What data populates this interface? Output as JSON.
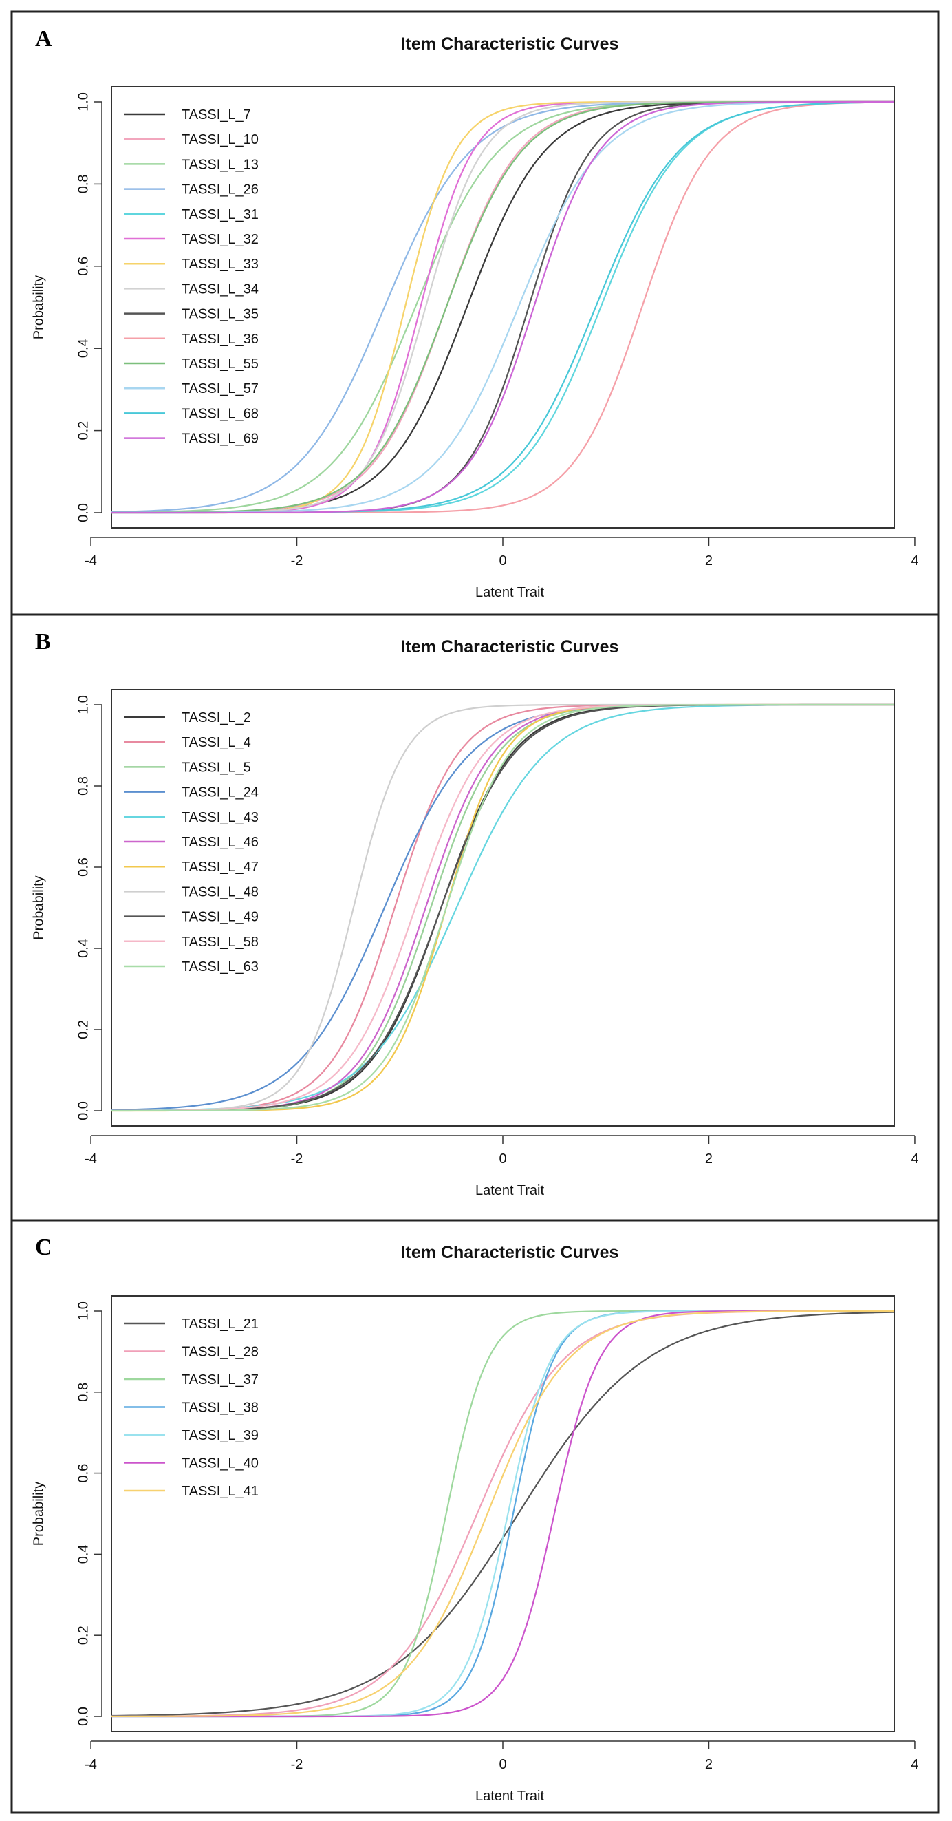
{
  "chart_data": [
    {
      "panel": "A",
      "type": "line",
      "title": "Item Characteristic Curves",
      "xlabel": "Latent Trait",
      "ylabel": "Probability",
      "xlim": [
        -3.8,
        3.8
      ],
      "ylim": [
        0,
        1
      ],
      "xticks": [
        "-4",
        "-2",
        "0",
        "2",
        "4"
      ],
      "yticks": [
        "0.0",
        "0.2",
        "0.4",
        "0.6",
        "0.8",
        "1.0"
      ],
      "legend": "top-left",
      "series": [
        {
          "name": "TASSI_L_7",
          "color": "#3a3a3a",
          "a": 1.55,
          "b": -0.35
        },
        {
          "name": "TASSI_L_10",
          "color": "#f2a6bd",
          "a": 1.65,
          "b": -0.55
        },
        {
          "name": "TASSI_L_13",
          "color": "#9ed69e",
          "a": 1.45,
          "b": -0.85
        },
        {
          "name": "TASSI_L_26",
          "color": "#8fb8e6",
          "a": 1.4,
          "b": -1.15
        },
        {
          "name": "TASSI_L_31",
          "color": "#5fd6de",
          "a": 1.5,
          "b": 0.95
        },
        {
          "name": "TASSI_L_32",
          "color": "#e070d6",
          "a": 2.3,
          "b": -0.8
        },
        {
          "name": "TASSI_L_33",
          "color": "#f6d36a",
          "a": 2.4,
          "b": -0.95
        },
        {
          "name": "TASSI_L_34",
          "color": "#d2d2d2",
          "a": 2.1,
          "b": -0.75
        },
        {
          "name": "TASSI_L_35",
          "color": "#555555",
          "a": 1.95,
          "b": 0.25
        },
        {
          "name": "TASSI_L_36",
          "color": "#f5a0a8",
          "a": 1.75,
          "b": 1.35
        },
        {
          "name": "TASSI_L_55",
          "color": "#7cbf7c",
          "a": 1.6,
          "b": -0.55
        },
        {
          "name": "TASSI_L_57",
          "color": "#a8d6f0",
          "a": 1.45,
          "b": 0.15
        },
        {
          "name": "TASSI_L_68",
          "color": "#48c8d8",
          "a": 1.45,
          "b": 0.9
        },
        {
          "name": "TASSI_L_69",
          "color": "#cc66d6",
          "a": 1.85,
          "b": 0.3
        }
      ]
    },
    {
      "panel": "B",
      "type": "line",
      "title": "Item Characteristic Curves",
      "xlabel": "Latent Trait",
      "ylabel": "Probability",
      "xlim": [
        -3.8,
        3.8
      ],
      "ylim": [
        0,
        1
      ],
      "xticks": [
        "-4",
        "-2",
        "0",
        "2",
        "4"
      ],
      "yticks": [
        "0.0",
        "0.2",
        "0.4",
        "0.6",
        "0.8",
        "1.0"
      ],
      "legend": "top-left",
      "series": [
        {
          "name": "TASSI_L_2",
          "color": "#3a3a3a",
          "a": 1.7,
          "b": -0.6
        },
        {
          "name": "TASSI_L_4",
          "color": "#e88aa0",
          "a": 1.9,
          "b": -1.05
        },
        {
          "name": "TASSI_L_5",
          "color": "#98d098",
          "a": 1.8,
          "b": -0.7
        },
        {
          "name": "TASSI_L_24",
          "color": "#5b8fcf",
          "a": 1.4,
          "b": -1.15
        },
        {
          "name": "TASSI_L_43",
          "color": "#66d6e0",
          "a": 1.35,
          "b": -0.45
        },
        {
          "name": "TASSI_L_46",
          "color": "#cc66cc",
          "a": 1.8,
          "b": -0.75
        },
        {
          "name": "TASSI_L_47",
          "color": "#f2c84e",
          "a": 2.1,
          "b": -0.55
        },
        {
          "name": "TASSI_L_48",
          "color": "#cfcfcf",
          "a": 2.4,
          "b": -1.45
        },
        {
          "name": "TASSI_L_49",
          "color": "#555555",
          "a": 1.65,
          "b": -0.6
        },
        {
          "name": "TASSI_L_58",
          "color": "#f5b8c8",
          "a": 1.75,
          "b": -0.85
        },
        {
          "name": "TASSI_L_63",
          "color": "#a8dca8",
          "a": 1.9,
          "b": -0.55
        }
      ]
    },
    {
      "panel": "C",
      "type": "line",
      "title": "Item Characteristic Curves",
      "xlabel": "Latent Trait",
      "ylabel": "Probability",
      "xlim": [
        -3.8,
        3.8
      ],
      "ylim": [
        0,
        1
      ],
      "xticks": [
        "-4",
        "-2",
        "0",
        "2",
        "4"
      ],
      "yticks": [
        "0.0",
        "0.2",
        "0.4",
        "0.6",
        "0.8",
        "1.0"
      ],
      "legend": "top-left",
      "series": [
        {
          "name": "TASSI_L_21",
          "color": "#555555",
          "a": 0.95,
          "b": 0.15
        },
        {
          "name": "TASSI_L_28",
          "color": "#f0a0b8",
          "a": 1.4,
          "b": -0.25
        },
        {
          "name": "TASSI_L_37",
          "color": "#9ed89e",
          "a": 2.9,
          "b": -0.55
        },
        {
          "name": "TASSI_L_38",
          "color": "#5aa8e0",
          "a": 3.0,
          "b": 0.1
        },
        {
          "name": "TASSI_L_39",
          "color": "#9ae2ee",
          "a": 2.8,
          "b": 0.05
        },
        {
          "name": "TASSI_L_40",
          "color": "#cc55cc",
          "a": 2.7,
          "b": 0.5
        },
        {
          "name": "TASSI_L_41",
          "color": "#f7d170",
          "a": 1.5,
          "b": -0.15
        }
      ]
    }
  ]
}
